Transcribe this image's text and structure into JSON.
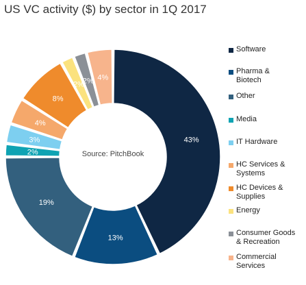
{
  "chart_data": {
    "type": "pie",
    "title": "US VC activity ($) by sector in 1Q 2017",
    "center_text": "Source: PitchBook",
    "legend_position": "right",
    "slices": [
      {
        "label": "Software",
        "value": 43,
        "value_label": "43%",
        "legend": "Software",
        "color": "#0f2744"
      },
      {
        "label": "Pharma & Biotech",
        "value": 13,
        "value_label": "13%",
        "legend": "Pharma &\nBiotech",
        "color": "#0b4d80"
      },
      {
        "label": "Other",
        "value": 19,
        "value_label": "19%",
        "legend": "Other",
        "color": "#33607e"
      },
      {
        "label": "Media",
        "value": 2,
        "value_label": "2%",
        "legend": "Media",
        "color": "#0fa3b3"
      },
      {
        "label": "IT Hardware",
        "value": 3,
        "value_label": "3%",
        "legend": "IT Hardware",
        "color": "#7dcff0"
      },
      {
        "label": "HC Services & Systems",
        "value": 4,
        "value_label": "4%",
        "legend": "HC Services &\nSystems",
        "color": "#f5a86b"
      },
      {
        "label": "HC Devices & Supplies",
        "value": 8,
        "value_label": "8%",
        "legend": "HC Devices &\nSupplies",
        "color": "#ef8b2c"
      },
      {
        "label": "Energy",
        "value": 2,
        "value_label": "2%",
        "legend": "Energy",
        "color": "#fbe27e"
      },
      {
        "label": "Consumer Goods & Recreation",
        "value": 2,
        "value_label": "2%",
        "legend": "Consumer Goods\n& Recreation",
        "color": "#8b9097"
      },
      {
        "label": "Commercial Services",
        "value": 4,
        "value_label": "4%",
        "legend": "Commercial\nServices",
        "color": "#f7b48c"
      }
    ]
  }
}
